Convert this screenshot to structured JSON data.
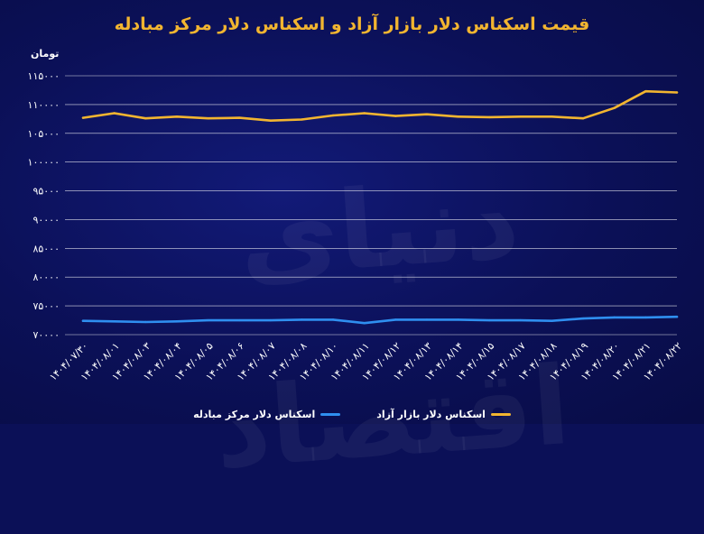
{
  "chart_data": {
    "type": "line",
    "title": "قیمت اسکناس دلار بازار آزاد و اسکناس دلار مرکز مبادله",
    "ylabel": "تومان",
    "xlabel": "",
    "ylim": [
      70000,
      115000
    ],
    "yticks": [
      70000,
      75000,
      80000,
      85000,
      90000,
      95000,
      100000,
      105000,
      110000,
      115000
    ],
    "ytick_labels": [
      "۷۰۰۰۰",
      "۷۵۰۰۰",
      "۸۰۰۰۰",
      "۸۵۰۰۰",
      "۹۰۰۰۰",
      "۹۵۰۰۰",
      "۱۰۰۰۰۰",
      "۱۰۵۰۰۰",
      "۱۱۰۰۰۰",
      "۱۱۵۰۰۰"
    ],
    "grid": true,
    "legend_position": "bottom",
    "categories": [
      "۱۴۰۴/۰۷/۳۰",
      "۱۴۰۴/۰۸/۰۱",
      "۱۴۰۴/۰۸/۰۳",
      "۱۴۰۴/۰۸/۰۴",
      "۱۴۰۴/۰۸/۰۵",
      "۱۴۰۴/۰۸/۰۶",
      "۱۴۰۴/۰۸/۰۷",
      "۱۴۰۴/۰۸/۰۸",
      "۱۴۰۴/۰۸/۱۰",
      "۱۴۰۴/۰۸/۱۱",
      "۱۴۰۴/۰۸/۱۲",
      "۱۴۰۴/۰۸/۱۳",
      "۱۴۰۴/۰۸/۱۴",
      "۱۴۰۴/۰۸/۱۵",
      "۱۴۰۴/۰۸/۱۷",
      "۱۴۰۴/۰۸/۱۸",
      "۱۴۰۴/۰۸/۱۹",
      "۱۴۰۴/۰۸/۲۰",
      "۱۴۰۴/۰۸/۲۱",
      "۱۴۰۴/۰۸/۲۲"
    ],
    "series": [
      {
        "name": "اسکناس دلار بازار آزاد",
        "color": "#f2b530",
        "values": [
          107700,
          108500,
          107600,
          107900,
          107600,
          107700,
          107200,
          107400,
          108100,
          108500,
          108000,
          108300,
          107900,
          107800,
          107900,
          107900,
          107600,
          109400,
          112300,
          112100
        ]
      },
      {
        "name": "اسکناس دلار مرکز مبادله",
        "color": "#2f8ff0",
        "values": [
          72400,
          72300,
          72200,
          72300,
          72500,
          72500,
          72500,
          72600,
          72600,
          72000,
          72600,
          72600,
          72600,
          72500,
          72500,
          72400,
          72800,
          73000,
          73000,
          73100
        ]
      }
    ]
  },
  "watermark": "دنیای اقتصاد",
  "colors": {
    "background": "#0b1057",
    "grid": "#ffffff",
    "title": "#f2b530"
  }
}
